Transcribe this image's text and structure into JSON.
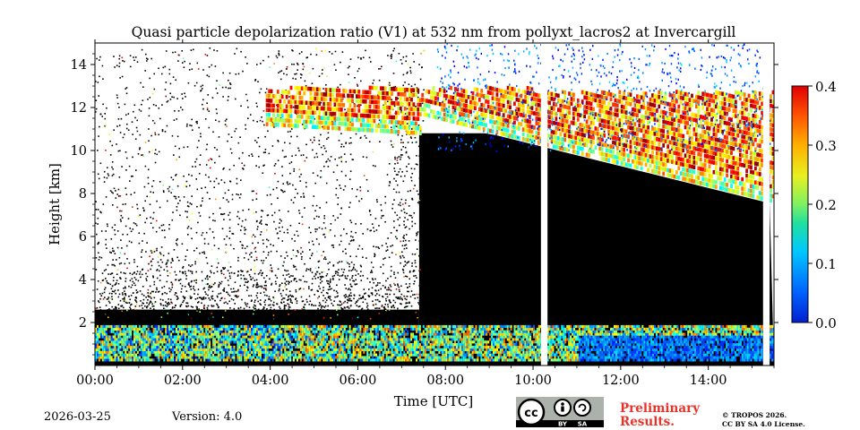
{
  "chart_data": {
    "type": "heatmap",
    "title": "Quasi particle depolarization ratio (V1) at 532 nm from pollyxt_lacros2 at Invercargill",
    "xlabel": "Time [UTC]",
    "ylabel": "Height [km]",
    "xlim": [
      0,
      15.5
    ],
    "ylim": [
      0,
      15
    ],
    "x_ticks": [
      0,
      2,
      4,
      6,
      8,
      10,
      12,
      14
    ],
    "x_tick_labels": [
      "00:00",
      "02:00",
      "04:00",
      "06:00",
      "08:00",
      "10:00",
      "12:00",
      "14:00"
    ],
    "y_ticks": [
      2,
      4,
      6,
      8,
      10,
      12,
      14
    ],
    "y_tick_labels": [
      "2",
      "4",
      "6",
      "8",
      "10",
      "12",
      "14"
    ],
    "colorbar": {
      "min": 0.0,
      "max": 0.4,
      "ticks": [
        0.0,
        0.1,
        0.2,
        0.3,
        0.4
      ],
      "tick_labels": [
        "0.0",
        "0.1",
        "0.2",
        "0.3",
        "0.4"
      ],
      "colormap": "jet"
    },
    "data_gaps_hours": [
      [
        10.18,
        10.33
      ],
      [
        15.25,
        15.4
      ]
    ],
    "features": [
      {
        "name": "cirrus cloud",
        "time_start_h": 3.9,
        "time_end_h": 15.5,
        "base_km_start": 11.6,
        "base_km_end": 7.5,
        "top_km": 12.8,
        "depolarization": 0.35
      },
      {
        "name": "boundary-layer aerosol",
        "time_start_h": 0,
        "time_end_h": 15.5,
        "base_km": 0.2,
        "top_km": 1.8,
        "depolarization": 0.15
      },
      {
        "name": "low-signal noise region",
        "time_start_h": 0,
        "time_end_h": 7.4,
        "base_km": 2,
        "top_km": 15
      }
    ]
  },
  "footer": {
    "date": "2026-03-25",
    "version": "Version: 4.0",
    "preliminary_line1": "Preliminary",
    "preliminary_line2": "Results.",
    "copyright_line1": "© TROPOS 2026.",
    "copyright_line2": "CC BY SA 4.0 License.",
    "cc_badge": {
      "by": "BY",
      "sa": "SA"
    }
  },
  "colors": {
    "background_signal": "#000000",
    "empty": "#ffffff"
  }
}
